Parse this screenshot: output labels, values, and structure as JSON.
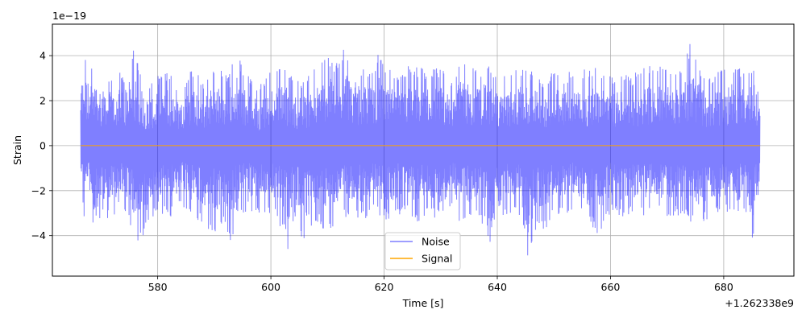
{
  "chart_data": {
    "type": "line",
    "title": "",
    "xlabel": "Time [s]",
    "ylabel": "Strain",
    "x_offset_label": "+1.262338e9",
    "y_scale_label": "1e−19",
    "xlim": [
      561.4,
      692.4
    ],
    "ylim": [
      -5.8,
      5.4
    ],
    "x_ticks": [
      580,
      600,
      620,
      640,
      660,
      680
    ],
    "x_tick_labels": [
      "580",
      "600",
      "620",
      "640",
      "660",
      "680"
    ],
    "y_ticks": [
      -4,
      -2,
      0,
      2,
      4
    ],
    "y_tick_labels": [
      "−4",
      "−2",
      "0",
      "2",
      "4"
    ],
    "grid": true,
    "legend_position": "bottom-center",
    "series": [
      {
        "name": "Noise",
        "color": "#7f7fff",
        "x_range": [
          566.4,
          686.4
        ],
        "envelope_upper": [
          [
            566.4,
            3.9
          ],
          [
            567.0,
            4.3
          ],
          [
            568.0,
            3.6
          ],
          [
            569.0,
            3.7
          ],
          [
            570.0,
            3.4
          ],
          [
            571.0,
            3.6
          ],
          [
            572.0,
            2.9
          ],
          [
            573.0,
            3.6
          ],
          [
            574.0,
            3.0
          ],
          [
            575.5,
            4.5
          ],
          [
            576.5,
            3.9
          ],
          [
            578.0,
            2.8
          ],
          [
            580.0,
            3.1
          ],
          [
            582.0,
            3.4
          ],
          [
            584.0,
            2.5
          ],
          [
            586.0,
            3.5
          ],
          [
            588.0,
            2.9
          ],
          [
            590.0,
            3.6
          ],
          [
            592.0,
            3.2
          ],
          [
            594.0,
            4.1
          ],
          [
            596.0,
            3.1
          ],
          [
            598.0,
            2.7
          ],
          [
            600.0,
            3.4
          ],
          [
            602.0,
            3.9
          ],
          [
            604.0,
            2.9
          ],
          [
            606.0,
            3.0
          ],
          [
            608.0,
            3.5
          ],
          [
            610.0,
            4.1
          ],
          [
            612.0,
            3.6
          ],
          [
            613.0,
            4.8
          ],
          [
            614.0,
            4.1
          ],
          [
            616.0,
            3.4
          ],
          [
            618.0,
            3.6
          ],
          [
            619.0,
            4.1
          ],
          [
            620.0,
            3.8
          ],
          [
            622.0,
            3.2
          ],
          [
            624.0,
            3.6
          ],
          [
            626.0,
            3.5
          ],
          [
            628.0,
            3.4
          ],
          [
            630.0,
            3.5
          ],
          [
            632.0,
            3.1
          ],
          [
            634.0,
            4.0
          ],
          [
            636.0,
            3.4
          ],
          [
            638.0,
            3.7
          ],
          [
            640.0,
            3.2
          ],
          [
            642.0,
            3.1
          ],
          [
            644.0,
            3.6
          ],
          [
            646.0,
            3.4
          ],
          [
            648.0,
            3.0
          ],
          [
            650.0,
            3.4
          ],
          [
            652.0,
            3.2
          ],
          [
            654.0,
            3.5
          ],
          [
            656.0,
            3.4
          ],
          [
            658.0,
            3.6
          ],
          [
            660.0,
            3.1
          ],
          [
            662.0,
            3.2
          ],
          [
            664.0,
            3.1
          ],
          [
            666.0,
            3.8
          ],
          [
            668.0,
            3.5
          ],
          [
            670.0,
            3.6
          ],
          [
            672.0,
            3.4
          ],
          [
            674.0,
            4.6
          ],
          [
            676.0,
            3.4
          ],
          [
            678.0,
            3.2
          ],
          [
            680.0,
            3.5
          ],
          [
            682.0,
            3.7
          ],
          [
            684.0,
            3.4
          ],
          [
            685.5,
            3.7
          ],
          [
            686.4,
            2.2
          ]
        ],
        "envelope_lower": [
          [
            566.4,
            -1.2
          ],
          [
            567.0,
            -3.2
          ],
          [
            568.0,
            -2.9
          ],
          [
            569.0,
            -4.3
          ],
          [
            570.0,
            -3.1
          ],
          [
            571.0,
            -3.3
          ],
          [
            572.0,
            -3.0
          ],
          [
            573.0,
            -3.4
          ],
          [
            574.0,
            -3.0
          ],
          [
            576.0,
            -4.2
          ],
          [
            577.5,
            -4.3
          ],
          [
            579.0,
            -3.2
          ],
          [
            580.0,
            -2.9
          ],
          [
            582.0,
            -3.3
          ],
          [
            584.0,
            -2.8
          ],
          [
            586.0,
            -3.3
          ],
          [
            588.0,
            -3.5
          ],
          [
            590.0,
            -4.1
          ],
          [
            592.0,
            -3.6
          ],
          [
            593.0,
            -4.5
          ],
          [
            594.0,
            -3.3
          ],
          [
            596.0,
            -2.9
          ],
          [
            598.0,
            -3.3
          ],
          [
            600.0,
            -3.0
          ],
          [
            602.0,
            -3.8
          ],
          [
            603.0,
            -4.6
          ],
          [
            604.0,
            -3.3
          ],
          [
            606.0,
            -4.5
          ],
          [
            608.0,
            -3.4
          ],
          [
            610.0,
            -4.0
          ],
          [
            612.0,
            -3.5
          ],
          [
            614.0,
            -3.1
          ],
          [
            616.0,
            -3.4
          ],
          [
            618.0,
            -3.0
          ],
          [
            620.0,
            -3.3
          ],
          [
            622.0,
            -3.2
          ],
          [
            624.0,
            -3.0
          ],
          [
            626.0,
            -3.4
          ],
          [
            628.0,
            -3.2
          ],
          [
            630.0,
            -3.4
          ],
          [
            632.0,
            -3.0
          ],
          [
            634.0,
            -3.6
          ],
          [
            636.0,
            -3.2
          ],
          [
            638.0,
            -3.6
          ],
          [
            639.0,
            -5.2
          ],
          [
            640.0,
            -3.8
          ],
          [
            642.0,
            -3.0
          ],
          [
            644.0,
            -3.1
          ],
          [
            645.5,
            -5.2
          ],
          [
            647.0,
            -3.5
          ],
          [
            648.0,
            -3.9
          ],
          [
            650.0,
            -3.1
          ],
          [
            652.0,
            -3.0
          ],
          [
            654.0,
            -3.0
          ],
          [
            656.0,
            -3.5
          ],
          [
            658.0,
            -4.0
          ],
          [
            660.0,
            -3.0
          ],
          [
            662.0,
            -3.3
          ],
          [
            664.0,
            -3.1
          ],
          [
            666.0,
            -3.2
          ],
          [
            668.0,
            -3.0
          ],
          [
            670.0,
            -3.3
          ],
          [
            672.0,
            -3.1
          ],
          [
            674.0,
            -3.4
          ],
          [
            676.0,
            -3.5
          ],
          [
            678.0,
            -3.1
          ],
          [
            680.0,
            -3.0
          ],
          [
            682.0,
            -3.3
          ],
          [
            684.0,
            -3.1
          ],
          [
            685.0,
            -4.4
          ],
          [
            686.4,
            -2.0
          ]
        ]
      },
      {
        "name": "Signal",
        "color": "#ffa500",
        "x": [
          566.4,
          686.4
        ],
        "y": [
          0,
          0
        ]
      }
    ]
  }
}
